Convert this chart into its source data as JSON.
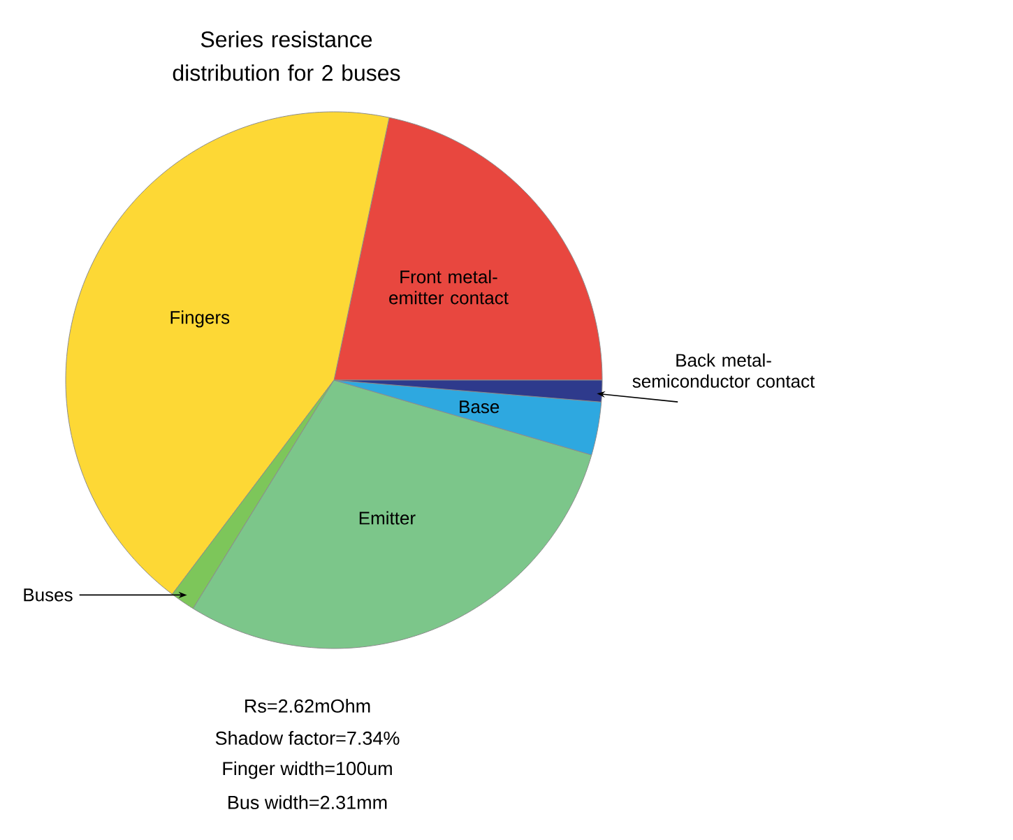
{
  "chart_data": {
    "type": "pie",
    "title": "Series resistance distribution for 2 buses",
    "categories": [
      "Front metal-emitter contact",
      "Fingers",
      "Buses",
      "Emitter",
      "Base",
      "Back metal-semiconductor contact"
    ],
    "values": [
      21.7,
      43.0,
      1.5,
      29.3,
      3.2,
      1.3
    ],
    "colors": [
      "#e8473f",
      "#fdd835",
      "#7dc65a",
      "#7cc68a",
      "#2ea8e0",
      "#2e3a8c"
    ],
    "annotations": [
      "Rs=2.62mOhm",
      "Shadow factor=7.34%",
      "Finger width=100um",
      "Bus width=2.31mm"
    ]
  }
}
